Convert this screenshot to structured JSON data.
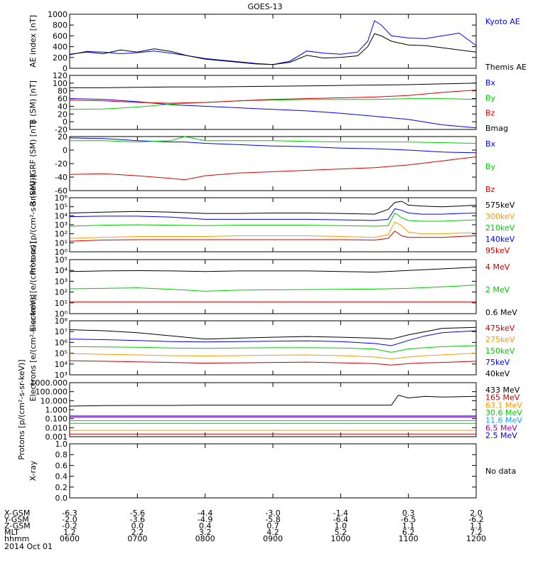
{
  "title": "GOES-13",
  "x_axis": {
    "rows": [
      {
        "label": "X-GSM",
        "values": [
          "-6.3",
          "-5.6",
          "-4.4",
          "-3.0",
          "-1.4",
          "0.3",
          "2.0"
        ]
      },
      {
        "label": "Y-GSM",
        "values": [
          "-2.0",
          "-3.6",
          "-4.9",
          "-5.8",
          "-6.4",
          "-6.5",
          "-6.2"
        ]
      },
      {
        "label": "Z-GSM",
        "values": [
          "-0.2",
          "0.0",
          "0.4",
          "0.7",
          "1.0",
          "1.1",
          "1.1"
        ]
      },
      {
        "label": "MLT",
        "values": [
          "1.2",
          "2.2",
          "3.2",
          "4.2",
          "5.2",
          "6.2",
          "7.2"
        ]
      },
      {
        "label": "hhmm",
        "values": [
          "0600",
          "0700",
          "0800",
          "0900",
          "1000",
          "1100",
          "1200"
        ]
      }
    ],
    "date": "2014 Oct 01"
  },
  "chart_data": [
    {
      "type": "line",
      "ylabel": "AE index [nT]",
      "ylim": [
        0,
        1000
      ],
      "yticks": [
        "0",
        "200",
        "400",
        "600",
        "800",
        "1000"
      ],
      "legend_placement": "right",
      "x": [
        6.0,
        6.25,
        6.5,
        6.75,
        7.0,
        7.25,
        7.5,
        7.75,
        8.0,
        8.25,
        8.5,
        8.75,
        9.0,
        9.25,
        9.5,
        9.75,
        10.0,
        10.25,
        10.4,
        10.5,
        10.6,
        10.75,
        11.0,
        11.25,
        11.5,
        11.75,
        12.0
      ],
      "series": [
        {
          "name": "Kyoto AE",
          "color": "#0000ff",
          "values": [
            250,
            310,
            300,
            270,
            290,
            320,
            280,
            230,
            180,
            150,
            120,
            90,
            70,
            130,
            320,
            280,
            260,
            300,
            500,
            880,
            800,
            600,
            560,
            550,
            600,
            650,
            420
          ]
        },
        {
          "name": "Themis AE",
          "color": "#000000",
          "values": [
            260,
            300,
            270,
            340,
            300,
            360,
            310,
            230,
            170,
            140,
            110,
            80,
            70,
            110,
            240,
            190,
            200,
            230,
            400,
            640,
            600,
            500,
            430,
            420,
            380,
            340,
            300
          ]
        }
      ]
    },
    {
      "type": "line",
      "ylabel": "B (SM) [nT]",
      "ylim": [
        -20,
        120
      ],
      "yticks": [
        "-20",
        "0",
        "20",
        "40",
        "60",
        "80",
        "100",
        "120"
      ],
      "legend_placement": "right",
      "x": [
        6.0,
        6.5,
        7.0,
        7.5,
        8.0,
        8.5,
        9.0,
        9.5,
        10.0,
        10.5,
        11.0,
        11.5,
        12.0
      ],
      "series": [
        {
          "name": "Bx",
          "color": "#0000ff",
          "values": [
            60,
            58,
            52,
            44,
            40,
            36,
            32,
            28,
            22,
            14,
            6,
            -8,
            -16
          ]
        },
        {
          "name": "By",
          "color": "#00cc00",
          "values": [
            32,
            33,
            38,
            46,
            50,
            54,
            56,
            58,
            58,
            58,
            60,
            60,
            58
          ]
        },
        {
          "name": "Bz",
          "color": "#dd0000",
          "values": [
            56,
            54,
            50,
            48,
            50,
            54,
            58,
            60,
            62,
            64,
            68,
            76,
            82
          ]
        },
        {
          "name": "Bmag",
          "color": "#000000",
          "values": [
            88,
            88,
            89,
            90,
            90,
            91,
            92,
            93,
            94,
            95,
            96,
            98,
            100
          ]
        }
      ]
    },
    {
      "type": "line",
      "ylabel": "B (SM)-IGRF (SM) [nT]",
      "ylim": [
        -60,
        20
      ],
      "yticks": [
        "-60",
        "-40",
        "-20",
        "0",
        "20"
      ],
      "legend_placement": "right",
      "x": [
        6.0,
        6.5,
        7.0,
        7.5,
        7.7,
        8.0,
        8.5,
        9.0,
        9.5,
        10.0,
        10.5,
        11.0,
        11.5,
        12.0
      ],
      "series": [
        {
          "name": "Bx",
          "color": "#0000ff",
          "values": [
            18,
            17,
            14,
            12,
            12,
            10,
            8,
            6,
            5,
            3,
            2,
            0,
            -3,
            -4
          ]
        },
        {
          "name": "By",
          "color": "#00cc00",
          "values": [
            14,
            14,
            12,
            14,
            20,
            14,
            14,
            14,
            13,
            12,
            12,
            12,
            11,
            10
          ]
        },
        {
          "name": "Bz",
          "color": "#dd0000",
          "values": [
            -36,
            -35,
            -38,
            -42,
            -44,
            -38,
            -34,
            -32,
            -30,
            -28,
            -26,
            -22,
            -16,
            -10
          ]
        }
      ]
    },
    {
      "type": "line",
      "ylabel": "Protons [p/(cm²-s-sr-keV)]",
      "yscale": "log",
      "ylim": [
        1,
        1000000
      ],
      "yticks": [
        "10⁰",
        "10¹",
        "10²",
        "10³",
        "10⁴",
        "10⁵",
        "10⁶"
      ],
      "legend_placement": "right",
      "x": [
        6.0,
        6.5,
        7.0,
        7.5,
        8.0,
        8.5,
        9.0,
        9.5,
        10.0,
        10.5,
        10.7,
        10.8,
        10.9,
        11.0,
        11.2,
        11.5,
        11.75,
        12.0
      ],
      "series": [
        {
          "name": "575keV",
          "color": "#000000",
          "values": [
            20000,
            25000,
            30000,
            25000,
            18000,
            18000,
            20000,
            20000,
            18000,
            15000,
            50000,
            300000,
            400000,
            150000,
            120000,
            100000,
            120000,
            150000
          ]
        },
        {
          "name": "300keV",
          "color": "#ff9900",
          "values": [
            30,
            40,
            50,
            50,
            50,
            60,
            60,
            60,
            50,
            40,
            80,
            2000,
            800,
            150,
            100,
            100,
            120,
            130
          ]
        },
        {
          "name": "210keV",
          "color": "#00cc00",
          "values": [
            700,
            900,
            1000,
            900,
            800,
            900,
            900,
            900,
            800,
            700,
            800,
            20000,
            6000,
            3000,
            2500,
            2500,
            3000,
            3500
          ]
        },
        {
          "name": "140keV",
          "color": "#0000ff",
          "values": [
            8000,
            9000,
            9000,
            7000,
            4000,
            4000,
            4000,
            4000,
            3500,
            3000,
            4000,
            60000,
            40000,
            20000,
            15000,
            15000,
            18000,
            20000
          ]
        },
        {
          "name": "95keV",
          "color": "#cc0000",
          "values": [
            15,
            20,
            22,
            22,
            22,
            22,
            22,
            22,
            22,
            20,
            30,
            200,
            60,
            40,
            40,
            40,
            50,
            60
          ]
        }
      ]
    },
    {
      "type": "line",
      "ylabel": "Electrons [e/(cm²-s-sr)]",
      "yscale": "log",
      "ylim": [
        1,
        100000
      ],
      "yticks": [
        "10⁰",
        "10¹",
        "10²",
        "10³",
        "10⁴",
        "10⁵"
      ],
      "legend_placement": "right",
      "x": [
        6.0,
        6.5,
        7.0,
        7.5,
        8.0,
        8.5,
        9.0,
        9.5,
        10.0,
        10.5,
        11.0,
        11.5,
        12.0
      ],
      "series": [
        {
          "name": "4 MeV",
          "color": "#cc0000",
          "values": [
            12,
            12,
            12,
            12,
            12,
            12,
            12,
            12,
            12,
            12,
            12,
            12,
            12
          ]
        },
        {
          "name": "2 MeV",
          "color": "#00cc00",
          "values": [
            200,
            220,
            250,
            180,
            120,
            150,
            160,
            170,
            180,
            190,
            220,
            300,
            450
          ]
        },
        {
          "name": "0.6 MeV",
          "color": "#000000",
          "values": [
            8000,
            9000,
            9500,
            9000,
            8000,
            9000,
            9000,
            9000,
            8000,
            7000,
            10000,
            14000,
            20000
          ]
        }
      ]
    },
    {
      "type": "line",
      "ylabel": "Electrons [e/(cm²-s-sr-keV)]",
      "yscale": "log",
      "ylim": [
        1000,
        100000000
      ],
      "yticks": [
        "10³",
        "10⁴",
        "10⁵",
        "10⁶",
        "10⁷",
        "10⁸"
      ],
      "legend_placement": "right",
      "x": [
        6.0,
        6.5,
        7.0,
        7.5,
        8.0,
        8.5,
        9.0,
        9.5,
        10.0,
        10.5,
        10.75,
        11.0,
        11.25,
        11.5,
        12.0
      ],
      "series": [
        {
          "name": "475keV",
          "color": "#cc0000",
          "values": [
            20000,
            18000,
            16000,
            14000,
            12000,
            13000,
            14000,
            15000,
            13000,
            11000,
            8000,
            11000,
            13000,
            14000,
            18000
          ]
        },
        {
          "name": "275keV",
          "color": "#ff9900",
          "values": [
            90000,
            80000,
            70000,
            60000,
            55000,
            60000,
            65000,
            70000,
            60000,
            45000,
            30000,
            45000,
            60000,
            70000,
            100000
          ]
        },
        {
          "name": "150keV",
          "color": "#00cc00",
          "values": [
            400000,
            380000,
            350000,
            300000,
            280000,
            300000,
            320000,
            320000,
            300000,
            250000,
            120000,
            250000,
            320000,
            400000,
            500000
          ]
        },
        {
          "name": "75keV",
          "color": "#0000ff",
          "values": [
            2000000,
            1800000,
            1500000,
            1200000,
            1100000,
            1200000,
            1300000,
            1400000,
            1200000,
            800000,
            500000,
            1500000,
            4000000,
            8000000,
            12000000
          ]
        },
        {
          "name": "40keV",
          "color": "#000000",
          "values": [
            15000000,
            12000000,
            8000000,
            4000000,
            2000000,
            2500000,
            3000000,
            3500000,
            3000000,
            2500000,
            2000000,
            5000000,
            10000000,
            20000000,
            25000000
          ]
        }
      ]
    },
    {
      "type": "line",
      "ylabel": "Protons [p/(cm²-s-sr-keV)]",
      "yscale": "log",
      "ylim": [
        0.001,
        1000
      ],
      "yticks": [
        "0.001",
        "0.010",
        "0.100",
        "1.000",
        "10.000",
        "100.000",
        "1000.000"
      ],
      "legend_placement": "right",
      "x": [
        6.0,
        6.5,
        7.0,
        7.5,
        8.0,
        8.5,
        9.0,
        9.5,
        10.0,
        10.5,
        10.75,
        10.85,
        11.0,
        11.25,
        11.5,
        12.0
      ],
      "series": [
        {
          "name": "433 MeV",
          "color": "#000000",
          "values": [
            2.5,
            2.8,
            3.0,
            3.0,
            3.2,
            3.2,
            3.2,
            3.2,
            3.2,
            3.2,
            3.2,
            40,
            20,
            30,
            25,
            30
          ]
        },
        {
          "name": "165 MeV",
          "color": "#cc0000",
          "values": [
            0.002,
            0.002,
            0.002,
            0.002,
            0.002,
            0.002,
            0.002,
            0.002,
            0.002,
            0.002,
            0.002,
            0.002,
            0.002,
            0.002,
            0.002,
            0.002
          ]
        },
        {
          "name": "63.1 MeV",
          "color": "#ff9900",
          "values": [
            0.005,
            0.005,
            0.005,
            0.005,
            0.005,
            0.005,
            0.005,
            0.005,
            0.005,
            0.005,
            0.005,
            0.005,
            0.005,
            0.005,
            0.005,
            0.005
          ]
        },
        {
          "name": "30.6 MeV",
          "color": "#00cc00",
          "values": [
            0.03,
            0.03,
            0.03,
            0.03,
            0.03,
            0.03,
            0.03,
            0.03,
            0.03,
            0.03,
            0.03,
            0.03,
            0.03,
            0.03,
            0.03,
            0.03
          ]
        },
        {
          "name": "11.6 MeV",
          "color": "#00aaff",
          "values": [
            0.06,
            0.06,
            0.06,
            0.06,
            0.06,
            0.06,
            0.06,
            0.06,
            0.06,
            0.06,
            0.06,
            0.06,
            0.06,
            0.06,
            0.06,
            0.06
          ]
        },
        {
          "name": "6.5 MeV",
          "color": "#990099",
          "values": [
            0.15,
            0.15,
            0.15,
            0.15,
            0.15,
            0.15,
            0.15,
            0.15,
            0.15,
            0.15,
            0.15,
            0.15,
            0.15,
            0.15,
            0.15,
            0.15
          ]
        },
        {
          "name": "2.5 MeV",
          "color": "#0000cc",
          "values": [
            0.2,
            0.2,
            0.2,
            0.2,
            0.2,
            0.2,
            0.2,
            0.2,
            0.2,
            0.2,
            0.2,
            0.2,
            0.2,
            0.2,
            0.2,
            0.2
          ]
        }
      ]
    },
    {
      "type": "line",
      "ylabel": "X-ray",
      "ylim": [
        0,
        1
      ],
      "yticks": [
        "0.0",
        "0.2",
        "0.4",
        "0.6",
        "0.8",
        "1.0"
      ],
      "legend_placement": "right",
      "note": "No data",
      "x": [],
      "series": []
    }
  ]
}
